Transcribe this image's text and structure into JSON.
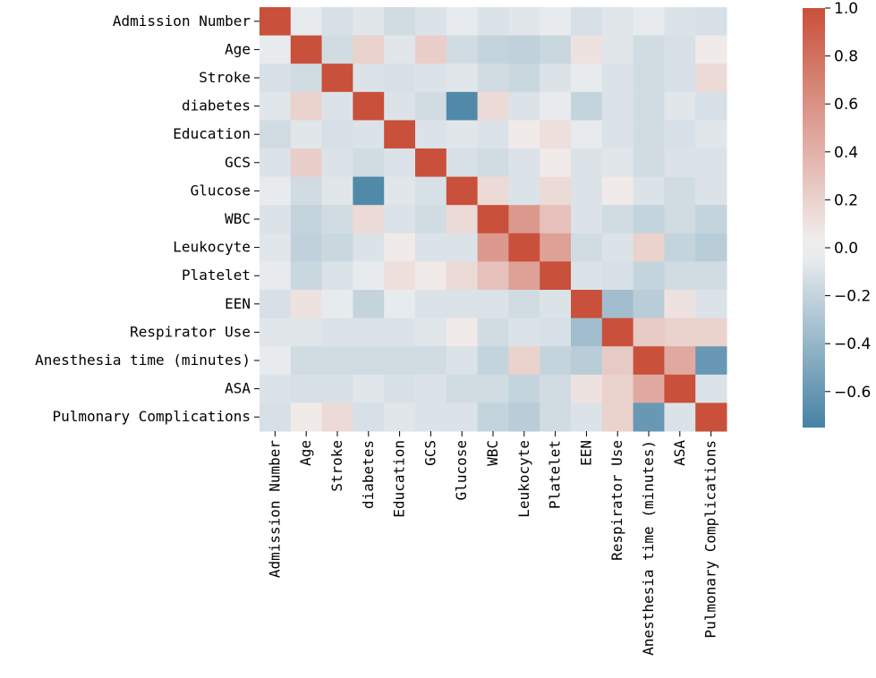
{
  "chart_data": {
    "type": "heatmap",
    "title": "",
    "labels": [
      "Admission Number",
      "Age",
      "Stroke",
      "diabetes",
      "Education",
      "GCS",
      "Glucose",
      "WBC",
      "Leukocyte",
      "Platelet",
      "EEN",
      "Respirator Use",
      "Anesthesia time (minutes)",
      "ASA",
      "Pulmonary Complications"
    ],
    "colorscale": {
      "min": -0.75,
      "max": 1.0,
      "negative_color": "#4682a4",
      "center_color": "#f2f2f2",
      "positive_color": "#c9503a"
    },
    "colorbar_ticks": [
      {
        "value": 1.0,
        "label": "1.0"
      },
      {
        "value": 0.8,
        "label": "0.8"
      },
      {
        "value": 0.6,
        "label": "0.6"
      },
      {
        "value": 0.4,
        "label": "0.4"
      },
      {
        "value": 0.2,
        "label": "0.2"
      },
      {
        "value": 0.0,
        "label": "0.0"
      },
      {
        "value": -0.2,
        "label": "−0.2"
      },
      {
        "value": -0.4,
        "label": "−0.4"
      },
      {
        "value": -0.6,
        "label": "−0.6"
      }
    ],
    "matrix": [
      [
        1.0,
        -0.05,
        -0.12,
        -0.08,
        -0.15,
        -0.1,
        -0.05,
        -0.1,
        -0.08,
        -0.05,
        -0.12,
        -0.08,
        -0.05,
        -0.1,
        -0.12
      ],
      [
        -0.05,
        1.0,
        -0.15,
        0.2,
        -0.08,
        0.22,
        -0.15,
        -0.2,
        -0.22,
        -0.18,
        0.1,
        -0.08,
        -0.15,
        -0.12,
        0.05
      ],
      [
        -0.12,
        -0.15,
        1.0,
        -0.1,
        -0.12,
        -0.1,
        -0.08,
        -0.15,
        -0.18,
        -0.1,
        -0.05,
        -0.1,
        -0.15,
        -0.12,
        0.15
      ],
      [
        -0.08,
        0.2,
        -0.1,
        1.0,
        -0.1,
        -0.15,
        -0.7,
        0.15,
        -0.1,
        -0.05,
        -0.2,
        -0.1,
        -0.15,
        -0.08,
        -0.12
      ],
      [
        -0.15,
        -0.08,
        -0.12,
        -0.1,
        1.0,
        -0.1,
        -0.08,
        -0.1,
        0.05,
        0.12,
        -0.05,
        -0.1,
        -0.15,
        -0.12,
        -0.08
      ],
      [
        -0.1,
        0.22,
        -0.1,
        -0.15,
        -0.1,
        1.0,
        -0.12,
        -0.15,
        -0.1,
        0.05,
        -0.1,
        -0.08,
        -0.15,
        -0.1,
        -0.1
      ],
      [
        -0.05,
        -0.15,
        -0.08,
        -0.7,
        -0.08,
        -0.12,
        1.0,
        0.15,
        -0.1,
        0.15,
        -0.1,
        0.05,
        -0.1,
        -0.15,
        -0.1
      ],
      [
        -0.1,
        -0.2,
        -0.15,
        0.15,
        -0.1,
        -0.15,
        0.15,
        1.0,
        0.55,
        0.3,
        -0.1,
        -0.15,
        -0.2,
        -0.15,
        -0.2
      ],
      [
        -0.08,
        -0.22,
        -0.18,
        -0.1,
        0.05,
        -0.1,
        -0.1,
        0.55,
        1.0,
        0.5,
        -0.15,
        -0.1,
        0.2,
        -0.2,
        -0.25
      ],
      [
        -0.05,
        -0.18,
        -0.1,
        -0.05,
        0.12,
        0.05,
        0.15,
        0.3,
        0.5,
        1.0,
        -0.1,
        -0.12,
        -0.2,
        -0.15,
        -0.15
      ],
      [
        -0.12,
        0.1,
        -0.05,
        -0.2,
        -0.05,
        -0.1,
        -0.1,
        -0.1,
        -0.15,
        -0.1,
        1.0,
        -0.35,
        -0.25,
        0.1,
        -0.1
      ],
      [
        -0.08,
        -0.08,
        -0.1,
        -0.1,
        -0.1,
        -0.08,
        0.05,
        -0.15,
        -0.1,
        -0.12,
        -0.35,
        1.0,
        0.25,
        0.2,
        0.2
      ],
      [
        -0.05,
        -0.15,
        -0.15,
        -0.15,
        -0.15,
        -0.15,
        -0.1,
        -0.2,
        0.2,
        -0.2,
        -0.25,
        0.25,
        1.0,
        0.45,
        -0.6
      ],
      [
        -0.1,
        -0.12,
        -0.12,
        -0.08,
        -0.12,
        -0.1,
        -0.15,
        -0.15,
        -0.2,
        -0.15,
        0.1,
        0.2,
        0.45,
        1.0,
        -0.1
      ],
      [
        -0.12,
        0.05,
        0.15,
        -0.12,
        -0.08,
        -0.1,
        -0.1,
        -0.2,
        -0.25,
        -0.15,
        -0.1,
        0.2,
        -0.6,
        -0.1,
        1.0
      ]
    ]
  }
}
